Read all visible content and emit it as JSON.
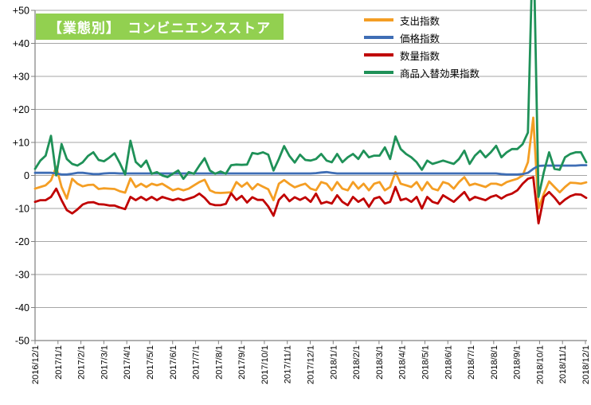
{
  "title": {
    "text": "【業態別】　コンビニエンスストア",
    "bg_color": "#92D050",
    "text_color": "#FFFFFF"
  },
  "legend": {
    "items": [
      {
        "key": "expenditure-index",
        "label": "支出指数",
        "color": "#F49E24"
      },
      {
        "key": "price-index",
        "label": "価格指数",
        "color": "#3F6EB5"
      },
      {
        "key": "quantity-index",
        "label": "数量指数",
        "color": "#C00000"
      },
      {
        "key": "product-substitution-index",
        "label": "商品入替効果指数",
        "color": "#1F9158"
      }
    ]
  },
  "chart_data": {
    "type": "line",
    "grid": "horizontal",
    "ylim": [
      -50,
      50
    ],
    "y_tick_step": 10,
    "y_tick_labels": [
      "+50",
      "+40",
      "+30",
      "+20",
      "+10",
      "0",
      "-10",
      "-20",
      "-30",
      "-40",
      "-50"
    ],
    "x_tick_labels": [
      "2016/12/1",
      "2017/1/1",
      "2017/2/1",
      "2017/3/1",
      "2017/4/1",
      "2017/5/1",
      "2017/6/1",
      "2017/7/1",
      "2017/8/1",
      "2017/9/1",
      "2017/10/1",
      "2017/11/1",
      "2017/12/1",
      "2018/1/1",
      "2018/2/1",
      "2018/3/1",
      "2018/4/1",
      "2018/5/1",
      "2018/6/1",
      "2018/7/1",
      "2018/8/1",
      "2018/9/1",
      "2018/10/1",
      "2018/11/1",
      "2018/12/1"
    ],
    "axis_color": "#808080",
    "grid_color": "#A6A6A6",
    "series": [
      {
        "key": "expenditure-index",
        "name": "支出指数",
        "color": "#F49E24",
        "values": [
          -4,
          -3.5,
          -3,
          -1.5,
          2.6,
          -3.5,
          -7,
          -1,
          -2.5,
          -3.3,
          -2.9,
          -2.8,
          -4.1,
          -3.9,
          -4,
          -4.1,
          -4.8,
          -5.2,
          -0.9,
          -3.5,
          -2.5,
          -3.5,
          -2.5,
          -3,
          -2.5,
          -3.5,
          -4.5,
          -4,
          -4.5,
          -4,
          -3,
          -2,
          -1.3,
          -4.5,
          -5.2,
          -5.3,
          -5.2,
          -5.1,
          -2,
          -3.4,
          -2.2,
          -4.2,
          -2.6,
          -3.4,
          -4.2,
          -7.5,
          -2.5,
          -1.4,
          -2.6,
          -3.6,
          -3,
          -2.5,
          -4,
          -4.5,
          -2,
          -2.5,
          -4.5,
          -2,
          -4,
          -4.5,
          -2,
          -4,
          -2.5,
          -4.5,
          -2.5,
          -2,
          -4.5,
          -3.5,
          1,
          -2.5,
          -3,
          -3.5,
          -2,
          -4.5,
          -2,
          -4,
          -4.5,
          -2,
          -2.5,
          -4,
          -2,
          -0.5,
          -3,
          -2.5,
          -3,
          -3.5,
          -2.5,
          -2.5,
          -3,
          -2,
          -1.5,
          -1,
          0,
          4,
          17.5,
          -10,
          -5.5,
          -1.8,
          -3.5,
          -5.1,
          -3.5,
          -2.2,
          -2.3,
          -2.5,
          -2.1
        ]
      },
      {
        "key": "price-index",
        "name": "価格指数",
        "color": "#3F6EB5",
        "values": [
          0.8,
          0.8,
          0.8,
          0.8,
          0.6,
          0.3,
          0.3,
          0.5,
          0.8,
          0.8,
          0.6,
          0.4,
          0.4,
          0.6,
          0.7,
          0.7,
          0.6,
          0.6,
          0.6,
          0.6,
          0.6,
          0.6,
          0.6,
          0.6,
          0.6,
          0.6,
          0.6,
          0.6,
          0.6,
          0.6,
          0.6,
          0.6,
          0.6,
          0.6,
          0.6,
          0.6,
          0.6,
          0.6,
          0.6,
          0.6,
          0.6,
          0.6,
          0.6,
          0.6,
          0.6,
          0.6,
          0.6,
          0.6,
          0.6,
          0.6,
          0.6,
          0.6,
          0.6,
          0.7,
          0.9,
          1,
          0.8,
          0.6,
          0.6,
          0.6,
          0.6,
          0.6,
          0.6,
          0.6,
          0.6,
          0.6,
          0.6,
          0.6,
          0.6,
          0.6,
          0.6,
          0.6,
          0.6,
          0.6,
          0.6,
          0.6,
          0.6,
          0.6,
          0.6,
          0.6,
          0.6,
          0.6,
          0.6,
          0.6,
          0.6,
          0.6,
          0.6,
          0.6,
          0.4,
          0.3,
          0.3,
          0.3,
          0.4,
          0.8,
          2,
          2.9,
          3,
          3,
          3,
          3,
          3,
          3,
          3,
          3.1,
          3.1
        ]
      },
      {
        "key": "quantity-index",
        "name": "数量指数",
        "color": "#C00000",
        "values": [
          -8,
          -7.5,
          -7.5,
          -6.5,
          -4,
          -7.5,
          -10.5,
          -11.5,
          -10.3,
          -8.8,
          -8.2,
          -8.1,
          -8.7,
          -8.8,
          -9.1,
          -9.1,
          -9.7,
          -10.2,
          -6.5,
          -7.5,
          -6.5,
          -7.5,
          -6.5,
          -7.5,
          -6.5,
          -7,
          -7.5,
          -7,
          -7.5,
          -7,
          -6.5,
          -5.5,
          -6.8,
          -8.6,
          -9,
          -9,
          -8.6,
          -5.4,
          -7.4,
          -6.2,
          -8.2,
          -6.6,
          -7.4,
          -7.4,
          -9.4,
          -12.2,
          -7.4,
          -5.8,
          -7.8,
          -6.6,
          -7.4,
          -6.6,
          -8,
          -5.5,
          -8.5,
          -8,
          -8.5,
          -6,
          -8,
          -9,
          -6.5,
          -8,
          -7,
          -9.5,
          -7,
          -6.5,
          -8.5,
          -8,
          -3.5,
          -7.5,
          -7,
          -8,
          -6.5,
          -10,
          -6.5,
          -8,
          -8.5,
          -6,
          -7,
          -8,
          -6.5,
          -5,
          -7.5,
          -6.5,
          -7,
          -7.5,
          -6.5,
          -6,
          -7,
          -6,
          -5.5,
          -4.5,
          -2.5,
          -1,
          -0.5,
          -14.5,
          -6.5,
          -5,
          -6.7,
          -8.7,
          -7.3,
          -6.3,
          -5.7,
          -5.8,
          -6.8
        ]
      },
      {
        "key": "product-substitution-index",
        "name": "商品入替効果指数",
        "color": "#1F9158",
        "values": [
          2,
          4.5,
          6,
          12,
          0,
          9.5,
          5,
          3.5,
          3,
          4,
          5.9,
          7,
          4.7,
          4.3,
          5.4,
          6.7,
          3.7,
          0.3,
          10.5,
          4.1,
          2.6,
          4.5,
          0.5,
          1,
          0,
          -0.5,
          0.5,
          1.5,
          -1,
          1,
          0.5,
          3,
          5.2,
          1.5,
          0.5,
          1.2,
          0.5,
          3.1,
          3.3,
          3.2,
          3.3,
          6.8,
          6.5,
          7,
          6.3,
          1.5,
          5,
          8.9,
          5.9,
          3.9,
          6.3,
          4.7,
          4.5,
          5,
          6.5,
          4.5,
          4,
          6.5,
          4,
          5.5,
          6.5,
          5,
          7.5,
          5.5,
          6,
          6,
          8.5,
          5,
          11.8,
          8,
          6.5,
          5.5,
          4,
          1.7,
          4.5,
          3.5,
          4,
          4.5,
          4,
          3.5,
          5,
          7.5,
          3.5,
          6,
          7.5,
          5.5,
          7,
          9,
          5.5,
          7,
          8,
          8,
          9.5,
          13,
          75,
          -6.5,
          1,
          7,
          2,
          1.7,
          5.5,
          6.5,
          7,
          7,
          4
        ]
      }
    ]
  }
}
